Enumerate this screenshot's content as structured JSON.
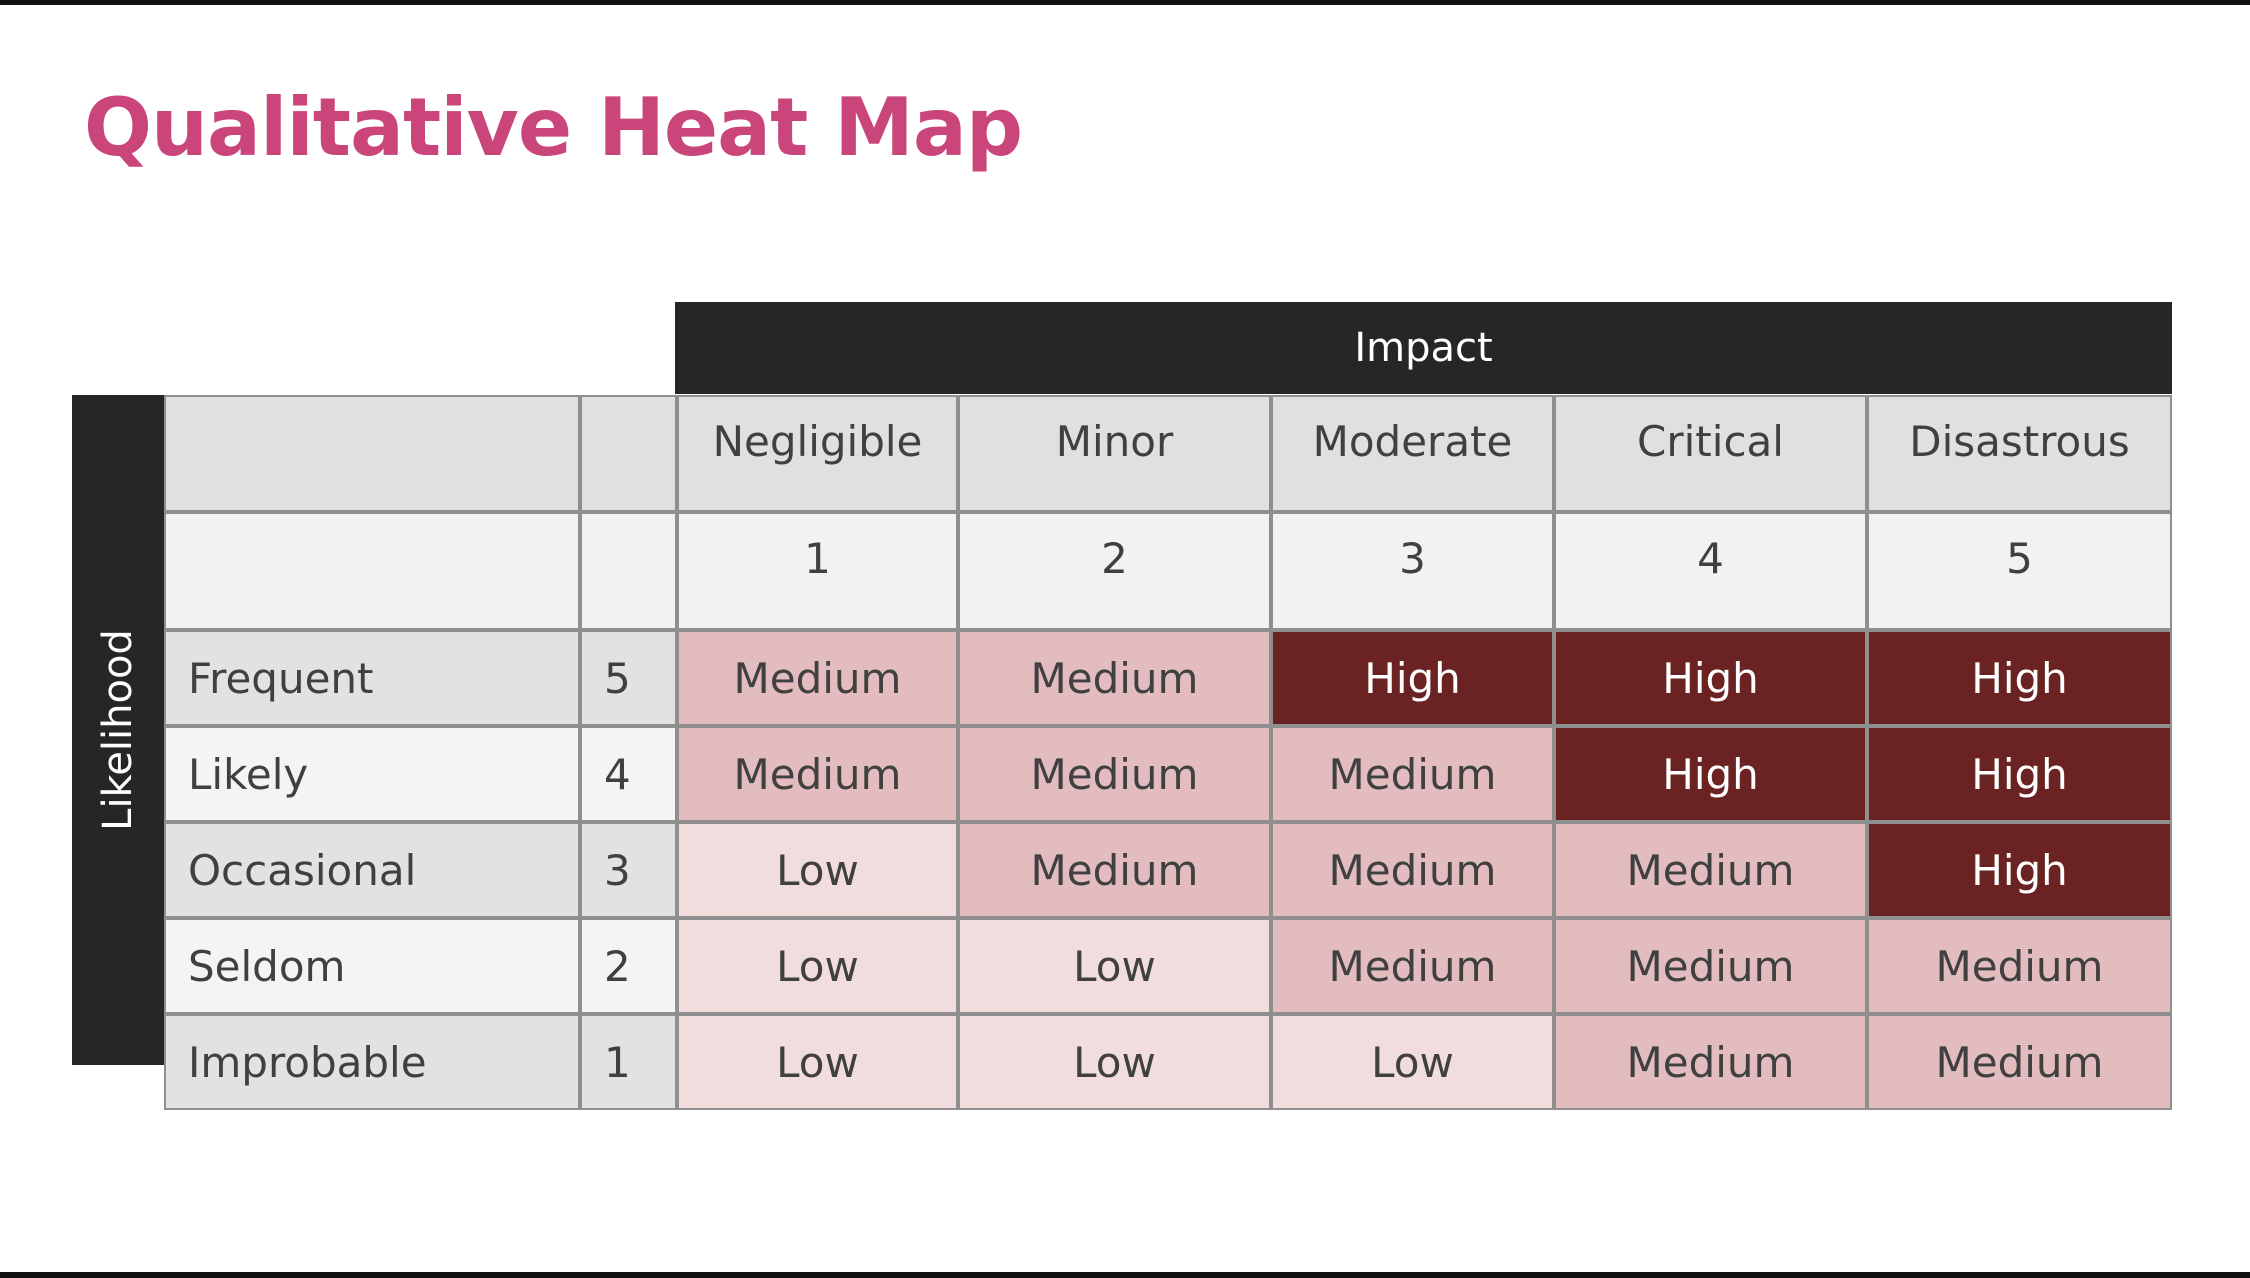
{
  "title": "Qualitative Heat Map",
  "chart_data": {
    "type": "heatmap",
    "x_title": "Impact",
    "y_title": "Likelihood",
    "columns": [
      {
        "label": "Negligible",
        "score": "1"
      },
      {
        "label": "Minor",
        "score": "2"
      },
      {
        "label": "Moderate",
        "score": "3"
      },
      {
        "label": "Critical",
        "score": "4"
      },
      {
        "label": "Disastrous",
        "score": "5"
      }
    ],
    "rows": [
      {
        "label": "Frequent",
        "score": "5",
        "values": [
          "Medium",
          "Medium",
          "High",
          "High",
          "High"
        ]
      },
      {
        "label": "Likely",
        "score": "4",
        "values": [
          "Medium",
          "Medium",
          "Medium",
          "High",
          "High"
        ]
      },
      {
        "label": "Occasional",
        "score": "3",
        "values": [
          "Low",
          "Medium",
          "Medium",
          "Medium",
          "High"
        ]
      },
      {
        "label": "Seldom",
        "score": "2",
        "values": [
          "Low",
          "Low",
          "Medium",
          "Medium",
          "Medium"
        ]
      },
      {
        "label": "Improbable",
        "score": "1",
        "values": [
          "Low",
          "Low",
          "Low",
          "Medium",
          "Medium"
        ]
      }
    ],
    "colors": {
      "High": "#6b2222",
      "Medium": "#e3bcbf",
      "Low": "#f1dcde",
      "header": "#e0e0e0",
      "header_light": "#f2f2f2",
      "row_odd": "#e2e2e2",
      "row_even": "#f4f4f4",
      "bar": "#262626",
      "title": "#c9457a"
    }
  }
}
